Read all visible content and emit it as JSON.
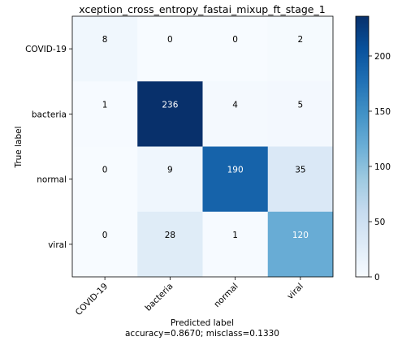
{
  "chart_data": {
    "type": "heatmap",
    "title": "xception_cross_entropy_fastai_mixup_ft_stage_1",
    "xlabel": "Predicted label",
    "xlabel_sub": "accuracy=0.8670; misclass=0.1330",
    "ylabel": "True label",
    "x_categories": [
      "COVID-19",
      "bacteria",
      "normal",
      "viral"
    ],
    "y_categories": [
      "COVID-19",
      "bacteria",
      "normal",
      "viral"
    ],
    "values": [
      [
        8,
        0,
        0,
        2
      ],
      [
        1,
        236,
        4,
        5
      ],
      [
        0,
        9,
        190,
        35
      ],
      [
        0,
        28,
        1,
        120
      ]
    ],
    "colormap": "Blues",
    "color_range": [
      0,
      236
    ],
    "colorbar_ticks": [
      0,
      50,
      100,
      150,
      200
    ],
    "grid": false
  }
}
